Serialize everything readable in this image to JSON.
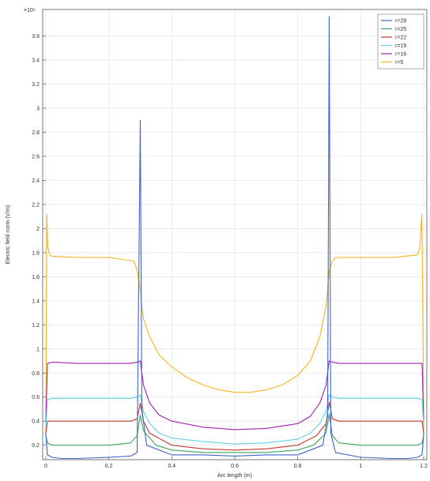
{
  "chart_data": {
    "type": "line",
    "xlabel": "Arc length (m)",
    "ylabel": "Electric field norm (V/m)",
    "y_multiplier_label": "×10⁶",
    "xlim": [
      -0.01,
      1.21
    ],
    "ylim": [
      0.08,
      3.82
    ],
    "x_ticks": [
      0,
      0.2,
      0.4,
      0.6,
      0.8,
      1,
      1.2
    ],
    "y_ticks": [
      0.2,
      0.4,
      0.6,
      0.8,
      1,
      1.2,
      1.4,
      1.6,
      1.8,
      2,
      2.2,
      2.4,
      2.6,
      2.8,
      3,
      3.2,
      3.4,
      3.6
    ],
    "grid": true,
    "legend_position": "top-right",
    "colors": {
      "r28": "#3f63c8",
      "r25": "#3aa35f",
      "r22": "#c0392b",
      "r19": "#5fd3e6",
      "r16": "#a31fa8",
      "r5": "#f2b51d"
    },
    "series": [
      {
        "name": "r=28",
        "color_key": "r28",
        "x": [
          0,
          0.005,
          0.02,
          0.05,
          0.1,
          0.2,
          0.27,
          0.29,
          0.3,
          0.305,
          0.32,
          0.4,
          0.5,
          0.6,
          0.7,
          0.8,
          0.88,
          0.895,
          0.9,
          0.905,
          0.92,
          1,
          1.1,
          1.15,
          1.18,
          1.195,
          1.2
        ],
        "y": [
          0.3,
          0.12,
          0.1,
          0.09,
          0.09,
          0.1,
          0.11,
          0.14,
          2.9,
          0.5,
          0.2,
          0.12,
          0.12,
          0.11,
          0.12,
          0.12,
          0.2,
          0.45,
          3.76,
          0.3,
          0.14,
          0.1,
          0.09,
          0.09,
          0.1,
          0.12,
          0.3
        ]
      },
      {
        "name": "r=25",
        "color_key": "r25",
        "x": [
          0,
          0.005,
          0.02,
          0.1,
          0.2,
          0.27,
          0.29,
          0.3,
          0.31,
          0.35,
          0.4,
          0.5,
          0.6,
          0.7,
          0.8,
          0.85,
          0.89,
          0.9,
          0.91,
          0.93,
          1,
          1.1,
          1.18,
          1.195,
          1.2
        ],
        "y": [
          0.28,
          0.22,
          0.2,
          0.2,
          0.2,
          0.22,
          0.28,
          0.45,
          0.32,
          0.2,
          0.16,
          0.14,
          0.14,
          0.14,
          0.16,
          0.2,
          0.3,
          0.46,
          0.28,
          0.22,
          0.2,
          0.2,
          0.2,
          0.22,
          0.28
        ]
      },
      {
        "name": "r=22",
        "color_key": "r22",
        "x": [
          0,
          0.005,
          0.02,
          0.1,
          0.2,
          0.27,
          0.29,
          0.3,
          0.31,
          0.33,
          0.4,
          0.5,
          0.6,
          0.7,
          0.8,
          0.86,
          0.89,
          0.9,
          0.91,
          0.93,
          1,
          1.1,
          1.18,
          1.195,
          1.2
        ],
        "y": [
          0.3,
          0.4,
          0.4,
          0.4,
          0.4,
          0.4,
          0.42,
          0.55,
          0.4,
          0.3,
          0.2,
          0.17,
          0.16,
          0.17,
          0.2,
          0.28,
          0.38,
          0.56,
          0.42,
          0.4,
          0.4,
          0.4,
          0.4,
          0.4,
          0.3
        ]
      },
      {
        "name": "r=19",
        "color_key": "r19",
        "x": [
          0,
          0.005,
          0.02,
          0.1,
          0.2,
          0.27,
          0.29,
          0.3,
          0.31,
          0.33,
          0.36,
          0.4,
          0.5,
          0.6,
          0.7,
          0.8,
          0.84,
          0.87,
          0.89,
          0.9,
          0.91,
          0.93,
          1,
          1.1,
          1.18,
          1.195,
          1.2
        ],
        "y": [
          0.35,
          0.58,
          0.59,
          0.59,
          0.59,
          0.59,
          0.6,
          0.62,
          0.48,
          0.38,
          0.3,
          0.26,
          0.23,
          0.21,
          0.22,
          0.25,
          0.3,
          0.38,
          0.48,
          0.62,
          0.6,
          0.59,
          0.59,
          0.59,
          0.59,
          0.58,
          0.35
        ]
      },
      {
        "name": "r=16",
        "color_key": "r16",
        "x": [
          0,
          0.005,
          0.02,
          0.1,
          0.2,
          0.27,
          0.29,
          0.3,
          0.31,
          0.33,
          0.36,
          0.4,
          0.5,
          0.6,
          0.7,
          0.8,
          0.84,
          0.87,
          0.89,
          0.9,
          0.91,
          0.93,
          1,
          1.1,
          1.18,
          1.195,
          1.2
        ],
        "y": [
          0.4,
          0.88,
          0.89,
          0.88,
          0.88,
          0.88,
          0.89,
          0.9,
          0.7,
          0.55,
          0.45,
          0.4,
          0.35,
          0.33,
          0.34,
          0.38,
          0.44,
          0.55,
          0.7,
          0.9,
          0.89,
          0.88,
          0.88,
          0.88,
          0.88,
          0.88,
          0.4
        ]
      },
      {
        "name": "r=5",
        "color_key": "r5",
        "x": [
          0,
          0.003,
          0.006,
          0.012,
          0.02,
          0.1,
          0.2,
          0.28,
          0.29,
          0.3,
          0.305,
          0.31,
          0.33,
          0.36,
          0.4,
          0.45,
          0.5,
          0.55,
          0.6,
          0.65,
          0.7,
          0.75,
          0.8,
          0.84,
          0.87,
          0.89,
          0.895,
          0.9,
          0.91,
          0.92,
          1,
          1.1,
          1.18,
          1.188,
          1.194,
          1.197,
          1.2
        ],
        "y": [
          0.3,
          2.12,
          1.85,
          1.78,
          1.77,
          1.76,
          1.76,
          1.73,
          1.65,
          1.5,
          1.35,
          1.25,
          1.1,
          0.95,
          0.85,
          0.76,
          0.7,
          0.66,
          0.64,
          0.64,
          0.66,
          0.7,
          0.78,
          0.9,
          1.1,
          1.35,
          1.5,
          1.65,
          1.73,
          1.76,
          1.76,
          1.76,
          1.78,
          1.85,
          2.12,
          1.4,
          0.3
        ]
      }
    ]
  }
}
